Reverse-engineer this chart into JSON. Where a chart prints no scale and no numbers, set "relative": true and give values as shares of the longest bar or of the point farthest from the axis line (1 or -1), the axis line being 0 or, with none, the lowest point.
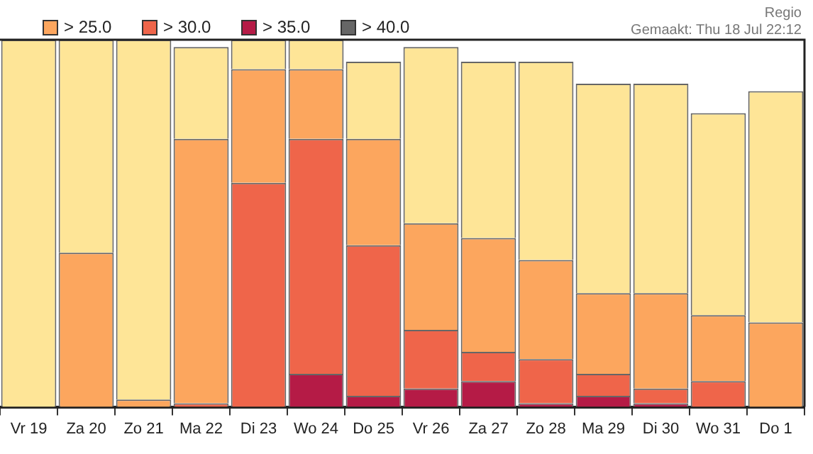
{
  "chart_data": {
    "type": "bar",
    "stacked": true,
    "relative": true,
    "legend": "top",
    "categories": [
      "Vr 19",
      "Za 20",
      "Zo 21",
      "Ma 22",
      "Di 23",
      "Wo 24",
      "Do 25",
      "Vr 26",
      "Za 27",
      "Zo 28",
      "Ma 29",
      "Di 30",
      "Wo 31",
      "Do 1"
    ],
    "series": [
      {
        "name": "> 40.0",
        "color": "#666666",
        "values": [
          null,
          null,
          null,
          null,
          null,
          null,
          null,
          null,
          null,
          null,
          null,
          null,
          null,
          null
        ]
      },
      {
        "name": "> 35.0",
        "color": "#b51b46",
        "values": [
          null,
          null,
          null,
          null,
          null,
          0.09,
          0.03,
          0.05,
          0.07,
          0.01,
          0.03,
          0.01,
          null,
          null
        ]
      },
      {
        "name": "> 30.0",
        "color": "#ef654a",
        "values": [
          null,
          null,
          null,
          0.01,
          0.61,
          0.64,
          0.41,
          0.16,
          0.08,
          0.12,
          0.06,
          0.04,
          0.07,
          null
        ]
      },
      {
        "name": "> 25.0",
        "color": "#fca65e",
        "values": [
          null,
          0.42,
          0.02,
          0.72,
          0.31,
          0.19,
          0.29,
          0.29,
          0.31,
          0.27,
          0.22,
          0.26,
          0.18,
          0.23
        ]
      },
      {
        "color": "#fee597",
        "values": [
          1.0,
          0.58,
          0.98,
          0.25,
          0.08,
          0.08,
          0.21,
          0.48,
          0.48,
          0.54,
          0.57,
          0.57,
          0.55,
          0.63
        ]
      }
    ],
    "annotations": [
      "Regio",
      "Gemaakt: Thu 18 Jul 22:12"
    ]
  }
}
